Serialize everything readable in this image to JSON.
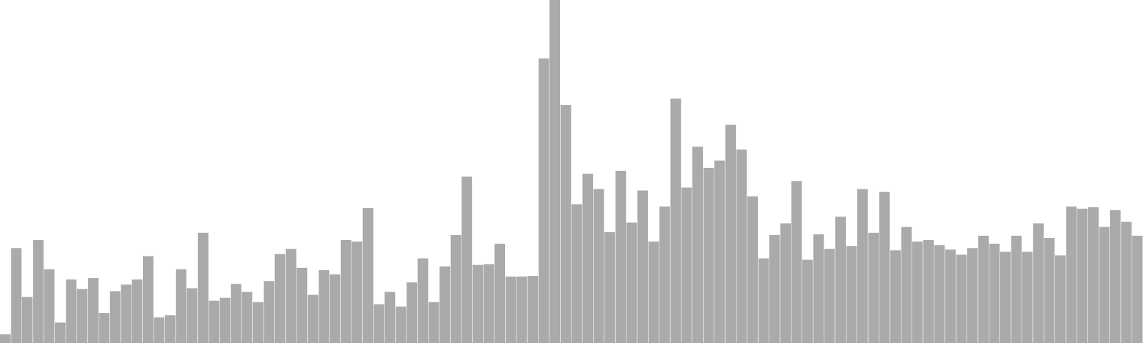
{
  "chart_data": {
    "type": "bar",
    "color": "#aaaaaa",
    "ylim": [
      0,
      470
    ],
    "values": [
      12,
      130,
      63,
      141,
      101,
      28,
      87,
      74,
      89,
      41,
      71,
      80,
      87,
      119,
      35,
      38,
      101,
      75,
      151,
      58,
      62,
      81,
      70,
      56,
      85,
      122,
      129,
      103,
      66,
      100,
      94,
      141,
      139,
      185,
      53,
      70,
      50,
      83,
      116,
      56,
      105,
      148,
      228,
      107,
      108,
      136,
      91,
      91,
      92,
      390,
      470,
      326,
      190,
      232,
      211,
      152,
      236,
      165,
      209,
      139,
      187,
      335,
      213,
      269,
      240,
      250,
      299,
      265,
      201,
      116,
      148,
      164,
      222,
      114,
      149,
      129,
      173,
      133,
      211,
      151,
      207,
      127,
      159,
      139,
      141,
      134,
      128,
      121,
      130,
      147,
      136,
      125,
      147,
      125,
      164,
      144,
      120,
      187,
      184,
      186,
      159,
      182,
      166,
      147
    ]
  }
}
